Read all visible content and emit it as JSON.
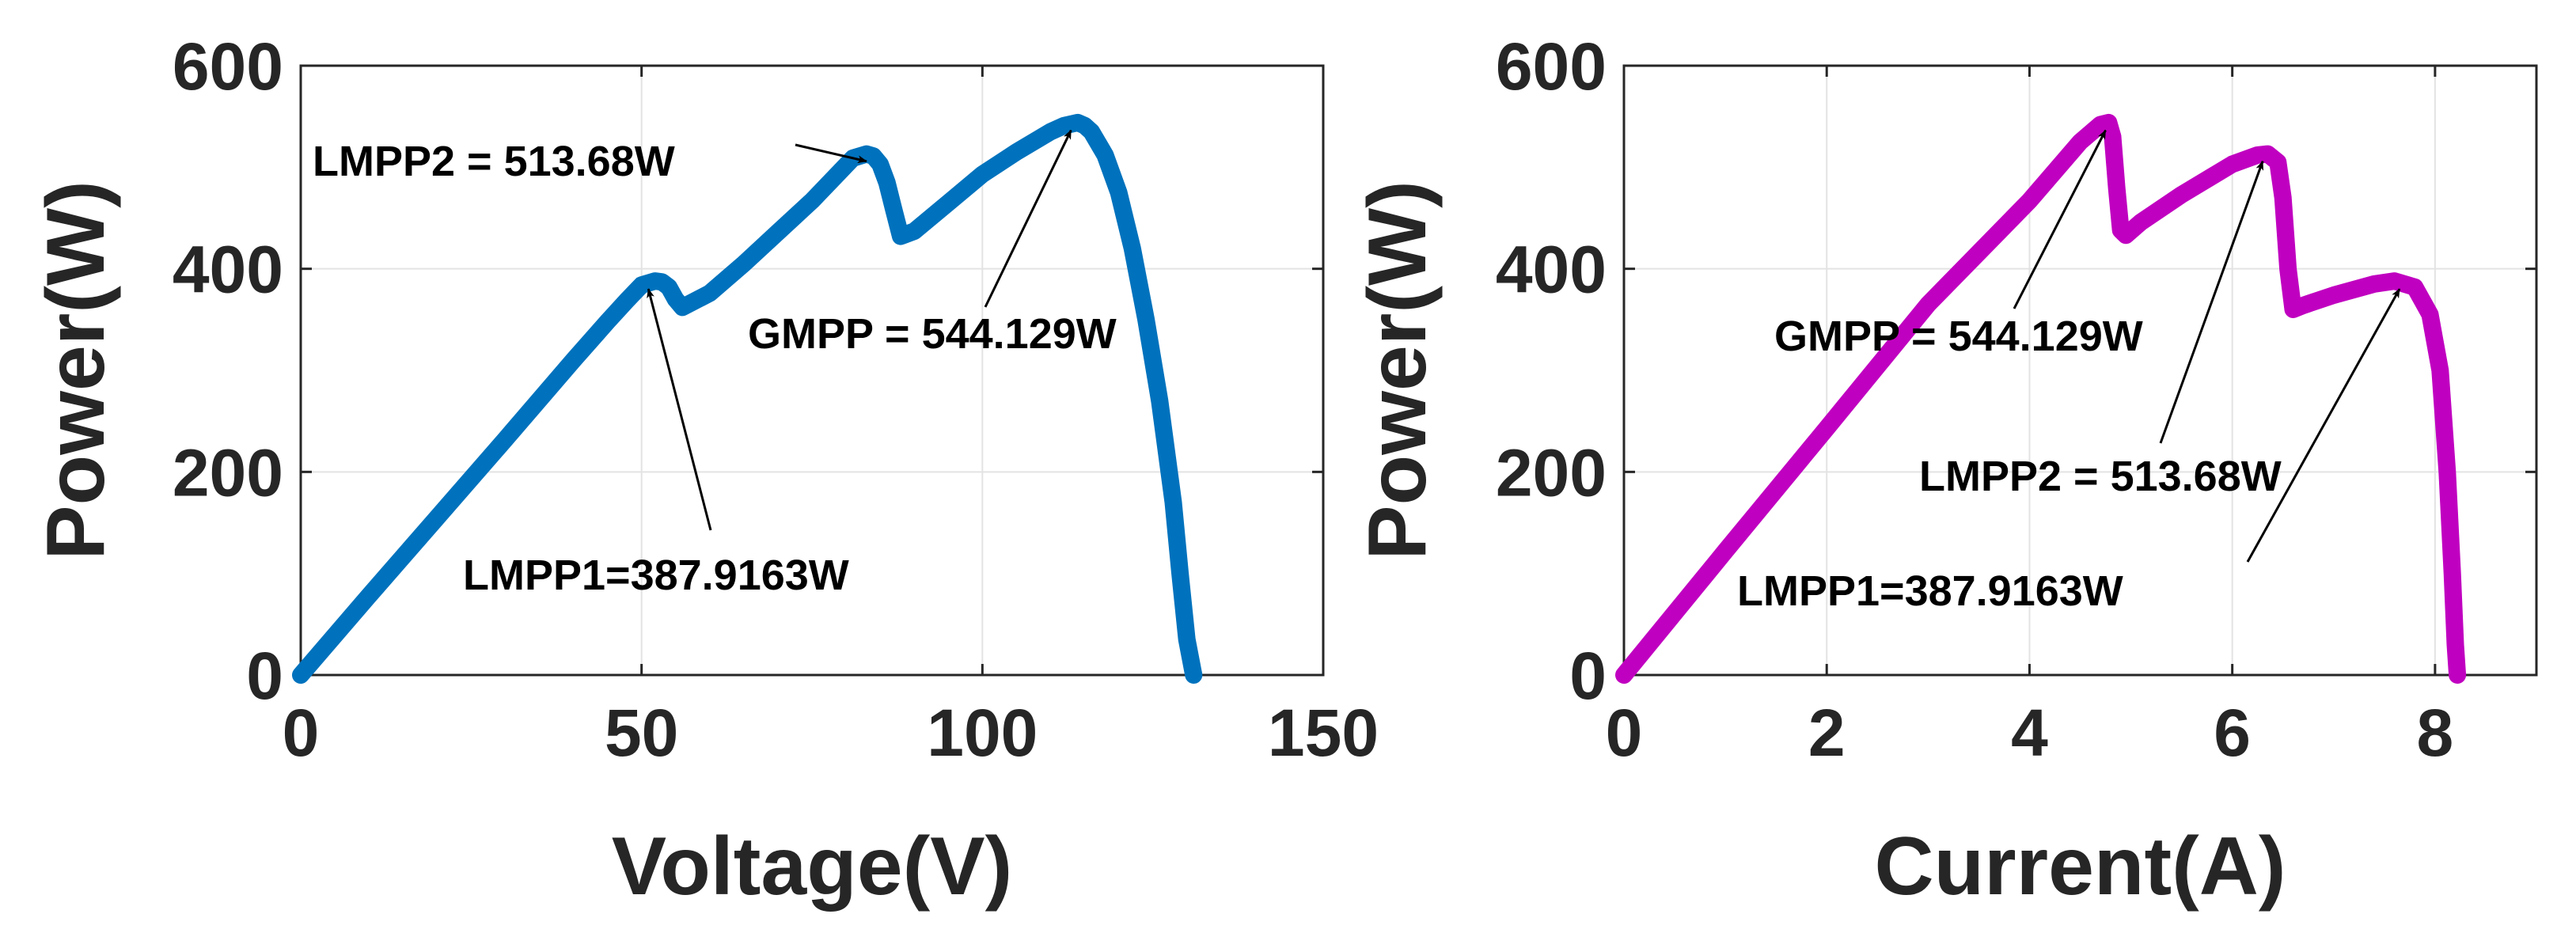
{
  "chart_data": [
    {
      "type": "line",
      "xlabel": "Voltage(V)",
      "ylabel": "Power(W)",
      "xlim": [
        0,
        150
      ],
      "ylim": [
        0,
        600
      ],
      "xticks": [
        0,
        50,
        100,
        150
      ],
      "yticks": [
        0,
        200,
        400,
        600
      ],
      "grid": true,
      "color": "#0072BD",
      "series": [
        {
          "x": [
            0,
            10,
            20,
            30,
            40,
            45,
            48,
            50,
            52,
            53,
            54,
            55,
            56,
            60,
            65,
            70,
            75,
            79,
            81,
            83,
            84,
            85,
            86,
            87,
            88,
            90,
            95,
            100,
            105,
            110,
            112,
            114,
            115,
            116,
            118,
            120,
            122,
            124,
            126,
            128,
            129,
            130,
            131
          ],
          "y": [
            0,
            78,
            155,
            232,
            310,
            348,
            370,
            384,
            388,
            387,
            382,
            370,
            362,
            376,
            405,
            436,
            467,
            495,
            509,
            513,
            511,
            503,
            485,
            458,
            432,
            437,
            465,
            493,
            515,
            535,
            541,
            544,
            541,
            535,
            512,
            475,
            420,
            350,
            270,
            170,
            100,
            35,
            0
          ]
        }
      ],
      "annotations": [
        {
          "text": "LMPP2 = 513.68W",
          "x": 83,
          "y": 513.68
        },
        {
          "text": "GMPP = 544.129W",
          "x": 113,
          "y": 544.129
        },
        {
          "text": "LMPP1=387.9163W",
          "x": 51,
          "y": 387.9163
        }
      ]
    },
    {
      "type": "line",
      "xlabel": "Current(A)",
      "ylabel": "Power(W)",
      "xlim": [
        0,
        9
      ],
      "ylim": [
        0,
        600
      ],
      "xticks": [
        0,
        2,
        4,
        6,
        8
      ],
      "yticks": [
        0,
        200,
        400,
        600
      ],
      "grid": true,
      "color": "#C000C0",
      "series": [
        {
          "x": [
            0,
            1,
            2,
            3,
            4,
            4.5,
            4.7,
            4.78,
            4.82,
            4.86,
            4.9,
            4.95,
            5.1,
            5.5,
            6.0,
            6.25,
            6.35,
            6.45,
            6.5,
            6.55,
            6.6,
            6.7,
            7.0,
            7.4,
            7.6,
            7.8,
            7.95,
            8.05,
            8.12,
            8.17,
            8.2,
            8.22
          ],
          "y": [
            0,
            122,
            243,
            365,
            467,
            525,
            542,
            544,
            530,
            480,
            438,
            433,
            446,
            473,
            503,
            512,
            513,
            505,
            470,
            400,
            360,
            364,
            374,
            385,
            388,
            382,
            355,
            300,
            200,
            100,
            30,
            0
          ]
        }
      ],
      "annotations": [
        {
          "text": "GMPP = 544.129W",
          "x": 4.75,
          "y": 544.129
        },
        {
          "text": "LMPP2 = 513.68W",
          "x": 6.3,
          "y": 513.68
        },
        {
          "text": "LMPP1=387.9163W",
          "x": 7.65,
          "y": 387.9163
        }
      ]
    }
  ]
}
